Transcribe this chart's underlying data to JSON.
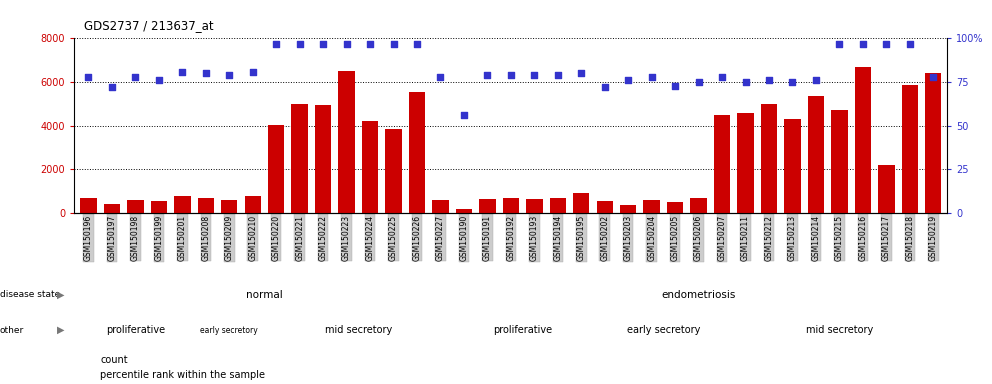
{
  "title": "GDS2737 / 213637_at",
  "samples": [
    "GSM150196",
    "GSM150197",
    "GSM150198",
    "GSM150199",
    "GSM150201",
    "GSM150208",
    "GSM150209",
    "GSM150210",
    "GSM150220",
    "GSM150221",
    "GSM150222",
    "GSM150223",
    "GSM150224",
    "GSM150225",
    "GSM150226",
    "GSM150227",
    "GSM150190",
    "GSM150191",
    "GSM150192",
    "GSM150193",
    "GSM150194",
    "GSM150195",
    "GSM150202",
    "GSM150203",
    "GSM150204",
    "GSM150205",
    "GSM150206",
    "GSM150207",
    "GSM150211",
    "GSM150212",
    "GSM150213",
    "GSM150214",
    "GSM150215",
    "GSM150216",
    "GSM150217",
    "GSM150218",
    "GSM150219"
  ],
  "counts": [
    700,
    400,
    600,
    550,
    800,
    700,
    600,
    800,
    4050,
    5000,
    4950,
    6500,
    4200,
    3850,
    5550,
    600,
    200,
    650,
    700,
    650,
    700,
    900,
    550,
    350,
    600,
    500,
    700,
    4500,
    4600,
    5000,
    4300,
    5350,
    4700,
    6700,
    2200,
    5850,
    6400
  ],
  "percentiles_pct": [
    78,
    72,
    78,
    76,
    81,
    80,
    79,
    81,
    97,
    97,
    97,
    97,
    97,
    97,
    97,
    78,
    56,
    79,
    79,
    79,
    79,
    80,
    72,
    76,
    78,
    73,
    75,
    78,
    75,
    76,
    75,
    76,
    97,
    97,
    97,
    97,
    78
  ],
  "ylim_left": [
    0,
    8000
  ],
  "ylim_right": [
    0,
    100
  ],
  "yticks_left": [
    0,
    2000,
    4000,
    6000,
    8000
  ],
  "yticks_right": [
    0,
    25,
    50,
    75,
    100
  ],
  "bar_color": "#cc0000",
  "dot_color": "#3333cc",
  "bg_color": "#ffffff",
  "tick_label_bg": "#cccccc",
  "disease_groups": [
    {
      "label": "normal",
      "start": 0,
      "end": 15,
      "color": "#bbeebb"
    },
    {
      "label": "endometriosis",
      "start": 16,
      "end": 36,
      "color": "#44dd44"
    }
  ],
  "other_groups": [
    {
      "label": "proliferative",
      "start": 0,
      "end": 4,
      "color": "#eeccee"
    },
    {
      "label": "early secretory",
      "start": 5,
      "end": 7,
      "color": "#dd99dd"
    },
    {
      "label": "mid secretory",
      "start": 8,
      "end": 15,
      "color": "#cc44cc"
    },
    {
      "label": "proliferative",
      "start": 16,
      "end": 21,
      "color": "#eeccee"
    },
    {
      "label": "early secretory",
      "start": 22,
      "end": 27,
      "color": "#dd99dd"
    },
    {
      "label": "mid secretory",
      "start": 28,
      "end": 36,
      "color": "#cc44cc"
    }
  ],
  "legend_items": [
    {
      "label": "count",
      "color": "#cc0000"
    },
    {
      "label": "percentile rank within the sample",
      "color": "#3333cc"
    }
  ]
}
